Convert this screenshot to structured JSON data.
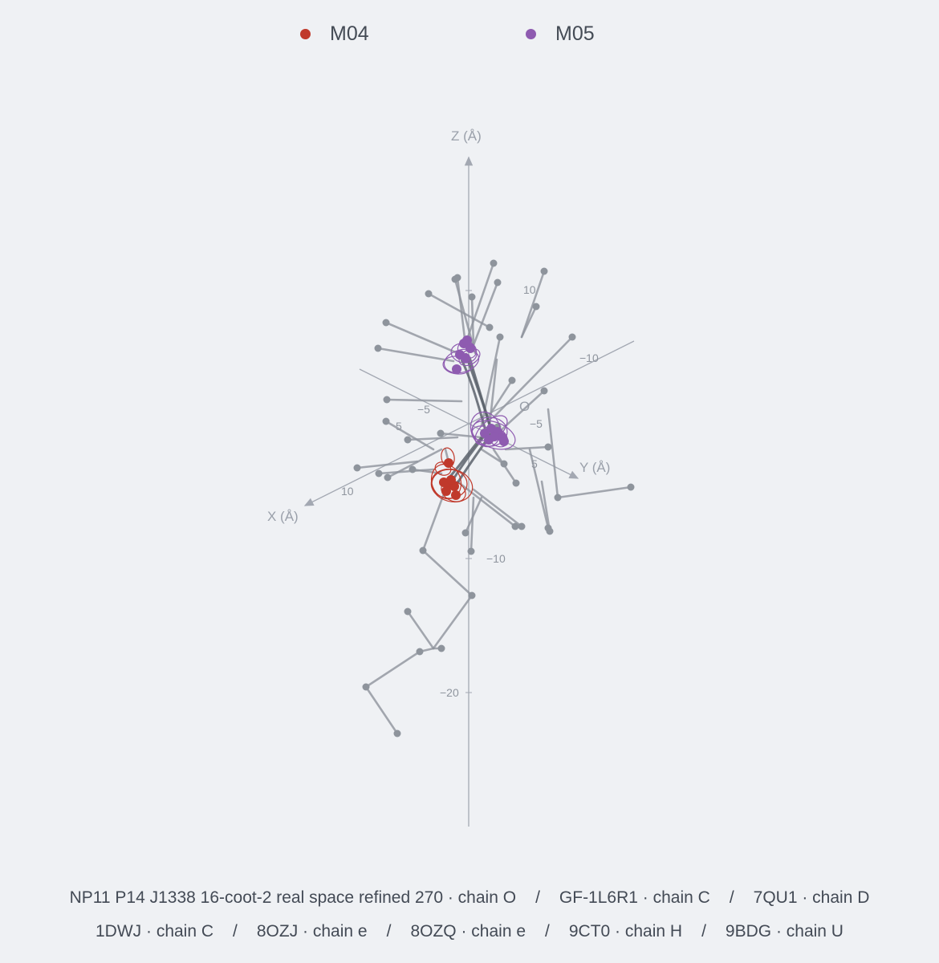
{
  "legend": [
    {
      "name": "M04",
      "color": "#c0392b"
    },
    {
      "name": "M05",
      "color": "#8e5bb0"
    }
  ],
  "footer": {
    "line1": [
      "NP11 P14 J1338 16-coot-2 real space refined 270 · chain O",
      "GF-1L6R1 · chain C",
      "7QU1 · chain D"
    ],
    "line2": [
      "1DWJ · chain C",
      "8OZJ · chain e",
      "8OZQ · chain e",
      "9CT0 · chain H",
      "9BDG · chain U"
    ],
    "separator": "/"
  },
  "chart_data": {
    "type": "scatter",
    "projection": "3d",
    "axes": {
      "x": {
        "label": "X (Å)",
        "ticks": [
          {
            "v": "5",
            "t": "5"
          },
          {
            "v": "10",
            "t": "10"
          },
          {
            "v": "-5",
            "t": "−5"
          }
        ]
      },
      "y": {
        "label": "Y (Å)",
        "ticks": [
          {
            "v": "-10",
            "t": "−10"
          },
          {
            "v": "-5",
            "t": "−5"
          },
          {
            "v": "5",
            "t": "5"
          }
        ]
      },
      "z": {
        "label": "Z (Å)",
        "ticks": [
          {
            "v": "10",
            "t": "10"
          },
          {
            "v": "-10",
            "t": "−10"
          },
          {
            "v": "-20",
            "t": "−20"
          }
        ]
      },
      "origin_label": "O"
    },
    "series": [
      {
        "name": "M04",
        "color": "#c0392b"
      },
      {
        "name": "M05",
        "color": "#8e5bb0"
      }
    ],
    "backbone_color": "#8e949c",
    "core_color": "#5a616b"
  }
}
